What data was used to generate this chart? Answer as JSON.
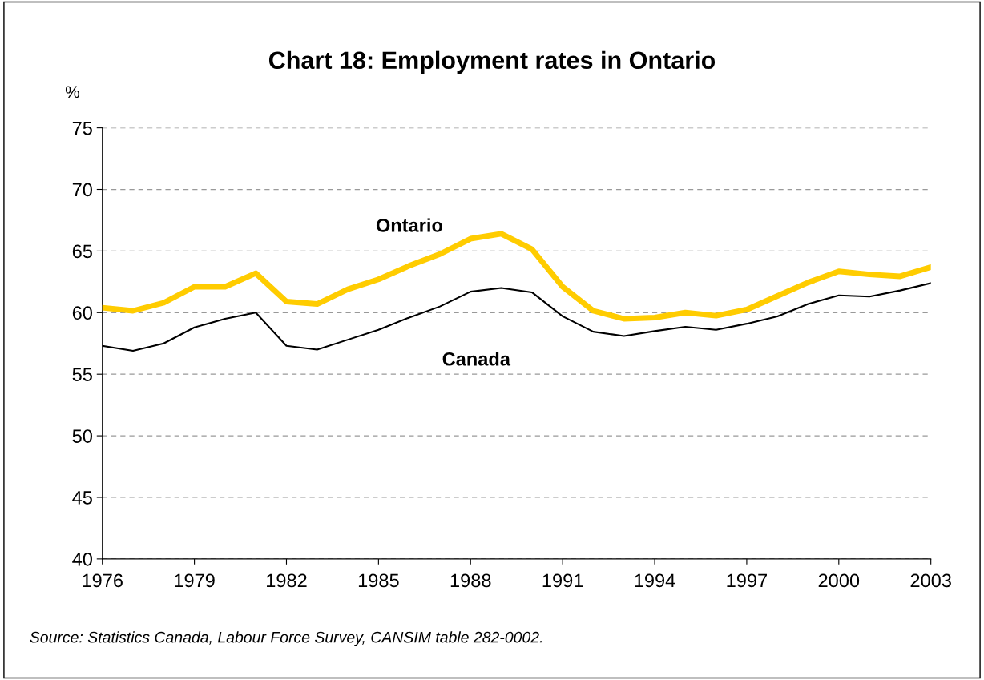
{
  "chart_data": {
    "type": "line",
    "title": "Chart 18: Employment rates in Ontario",
    "ylabel": "%",
    "x": [
      1976,
      1977,
      1978,
      1979,
      1980,
      1981,
      1982,
      1983,
      1984,
      1985,
      1986,
      1987,
      1988,
      1989,
      1990,
      1991,
      1992,
      1993,
      1994,
      1995,
      1996,
      1997,
      1998,
      1999,
      2000,
      2001,
      2002,
      2003
    ],
    "series": [
      {
        "name": "Ontario",
        "color": "#ffcc00",
        "values": [
          60.4,
          60.15,
          60.8,
          62.1,
          62.1,
          63.2,
          60.9,
          60.7,
          61.9,
          62.7,
          63.8,
          64.75,
          66.0,
          66.4,
          65.15,
          62.1,
          60.15,
          59.5,
          59.6,
          60.0,
          59.75,
          60.25,
          61.35,
          62.45,
          63.35,
          63.1,
          62.95,
          63.7
        ]
      },
      {
        "name": "Canada",
        "color": "#000000",
        "values": [
          57.3,
          56.9,
          57.5,
          58.8,
          59.5,
          60.0,
          57.3,
          57.0,
          57.8,
          58.6,
          59.6,
          60.5,
          61.7,
          62.0,
          61.65,
          59.7,
          58.45,
          58.1,
          58.5,
          58.85,
          58.6,
          59.1,
          59.7,
          60.7,
          61.4,
          61.3,
          61.8,
          62.4
        ]
      }
    ],
    "xlim": [
      1976,
      2003
    ],
    "xticks": [
      1976,
      1979,
      1982,
      1985,
      1988,
      1991,
      1994,
      1997,
      2000,
      2003
    ],
    "ylim": [
      40,
      75
    ],
    "yticks": [
      40,
      45,
      50,
      55,
      60,
      65,
      70,
      75
    ],
    "grid": "y",
    "legend": false,
    "marker": "none",
    "line_style": "solid",
    "annotations": [
      "Source: Statistics Canada, Labour Force Survey, CANSIM table 282-0002."
    ]
  }
}
